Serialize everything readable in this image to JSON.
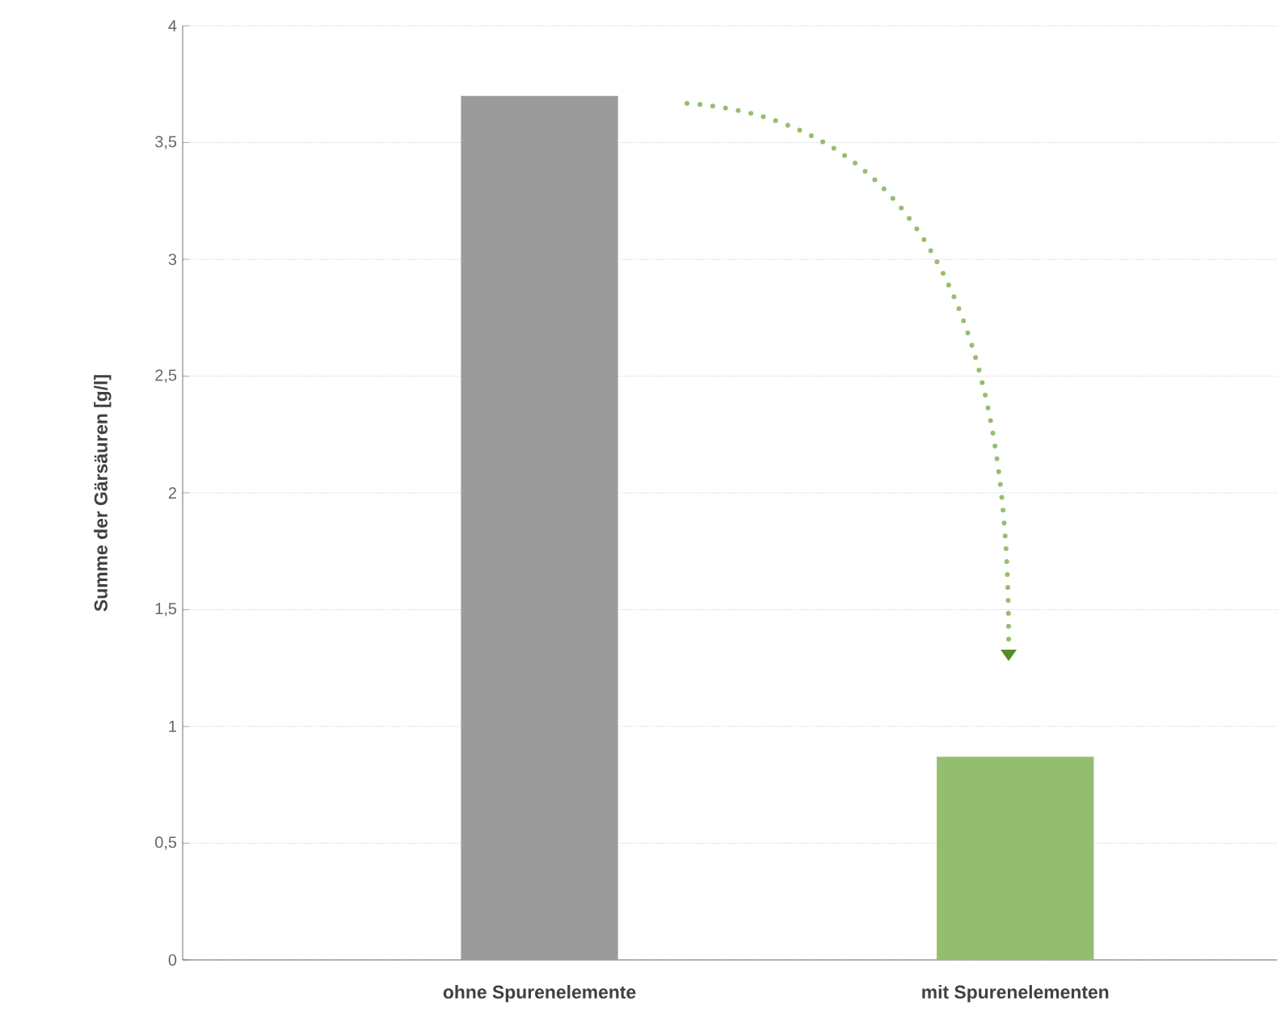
{
  "chart_data": {
    "type": "bar",
    "ylabel": "Summe der Gärsäuren [g/l]",
    "categories": [
      "ohne Spurenelemente",
      "mit Spurenelementen"
    ],
    "values": [
      3.7,
      0.87
    ],
    "colors": [
      "#9b9b9b",
      "#95bd6f"
    ],
    "ylim": [
      0,
      4
    ],
    "yticks": [
      0,
      {
        "value": 0.5,
        "label": "0,5"
      },
      1,
      {
        "value": 1.5,
        "label": "1,5"
      },
      2,
      {
        "value": 2.5,
        "label": "2,5"
      },
      3,
      {
        "value": 3.5,
        "label": "3,5"
      },
      4
    ],
    "grid": "y"
  }
}
